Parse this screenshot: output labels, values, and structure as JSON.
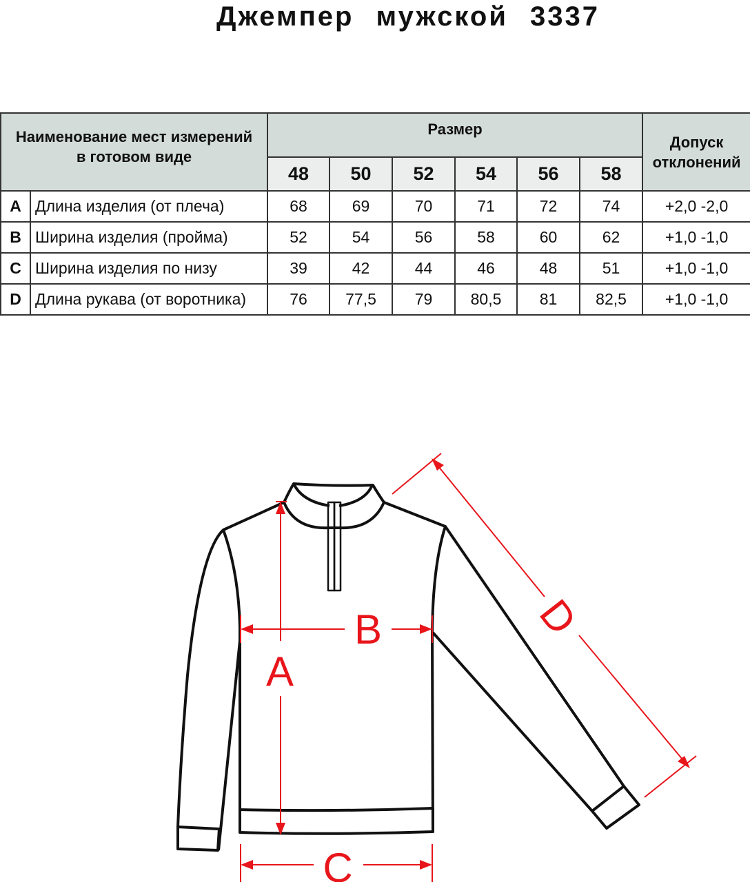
{
  "title": "Джемпер  мужской  3337",
  "table": {
    "name_header": [
      "Наименование мест измерений",
      "в готовом виде"
    ],
    "size_header": "Размер",
    "tolerance_header": [
      "Допуск",
      "отклонений"
    ],
    "sizes": [
      "48",
      "50",
      "52",
      "54",
      "56",
      "58"
    ],
    "rows": [
      {
        "letter": "A",
        "name": "Длина изделия (от плеча)",
        "values": [
          "68",
          "69",
          "70",
          "71",
          "72",
          "74"
        ],
        "tolerance": "+2,0 -2,0"
      },
      {
        "letter": "B",
        "name": "Ширина изделия (пройма)",
        "values": [
          "52",
          "54",
          "56",
          "58",
          "60",
          "62"
        ],
        "tolerance": "+1,0 -1,0"
      },
      {
        "letter": "C",
        "name": "Ширина изделия по низу",
        "values": [
          "39",
          "42",
          "44",
          "46",
          "48",
          "51"
        ],
        "tolerance": "+1,0 -1,0"
      },
      {
        "letter": "D",
        "name": "Длина рукава (от воротника)",
        "values": [
          "76",
          "77,5",
          "79",
          "80,5",
          "81",
          "82,5"
        ],
        "tolerance": "+1,0 -1,0"
      }
    ]
  },
  "diagram": {
    "labels": {
      "a": "A",
      "b": "B",
      "c": "C",
      "d": "D"
    },
    "colors": {
      "outline": "#111111",
      "dimension": "#e8151b"
    }
  }
}
